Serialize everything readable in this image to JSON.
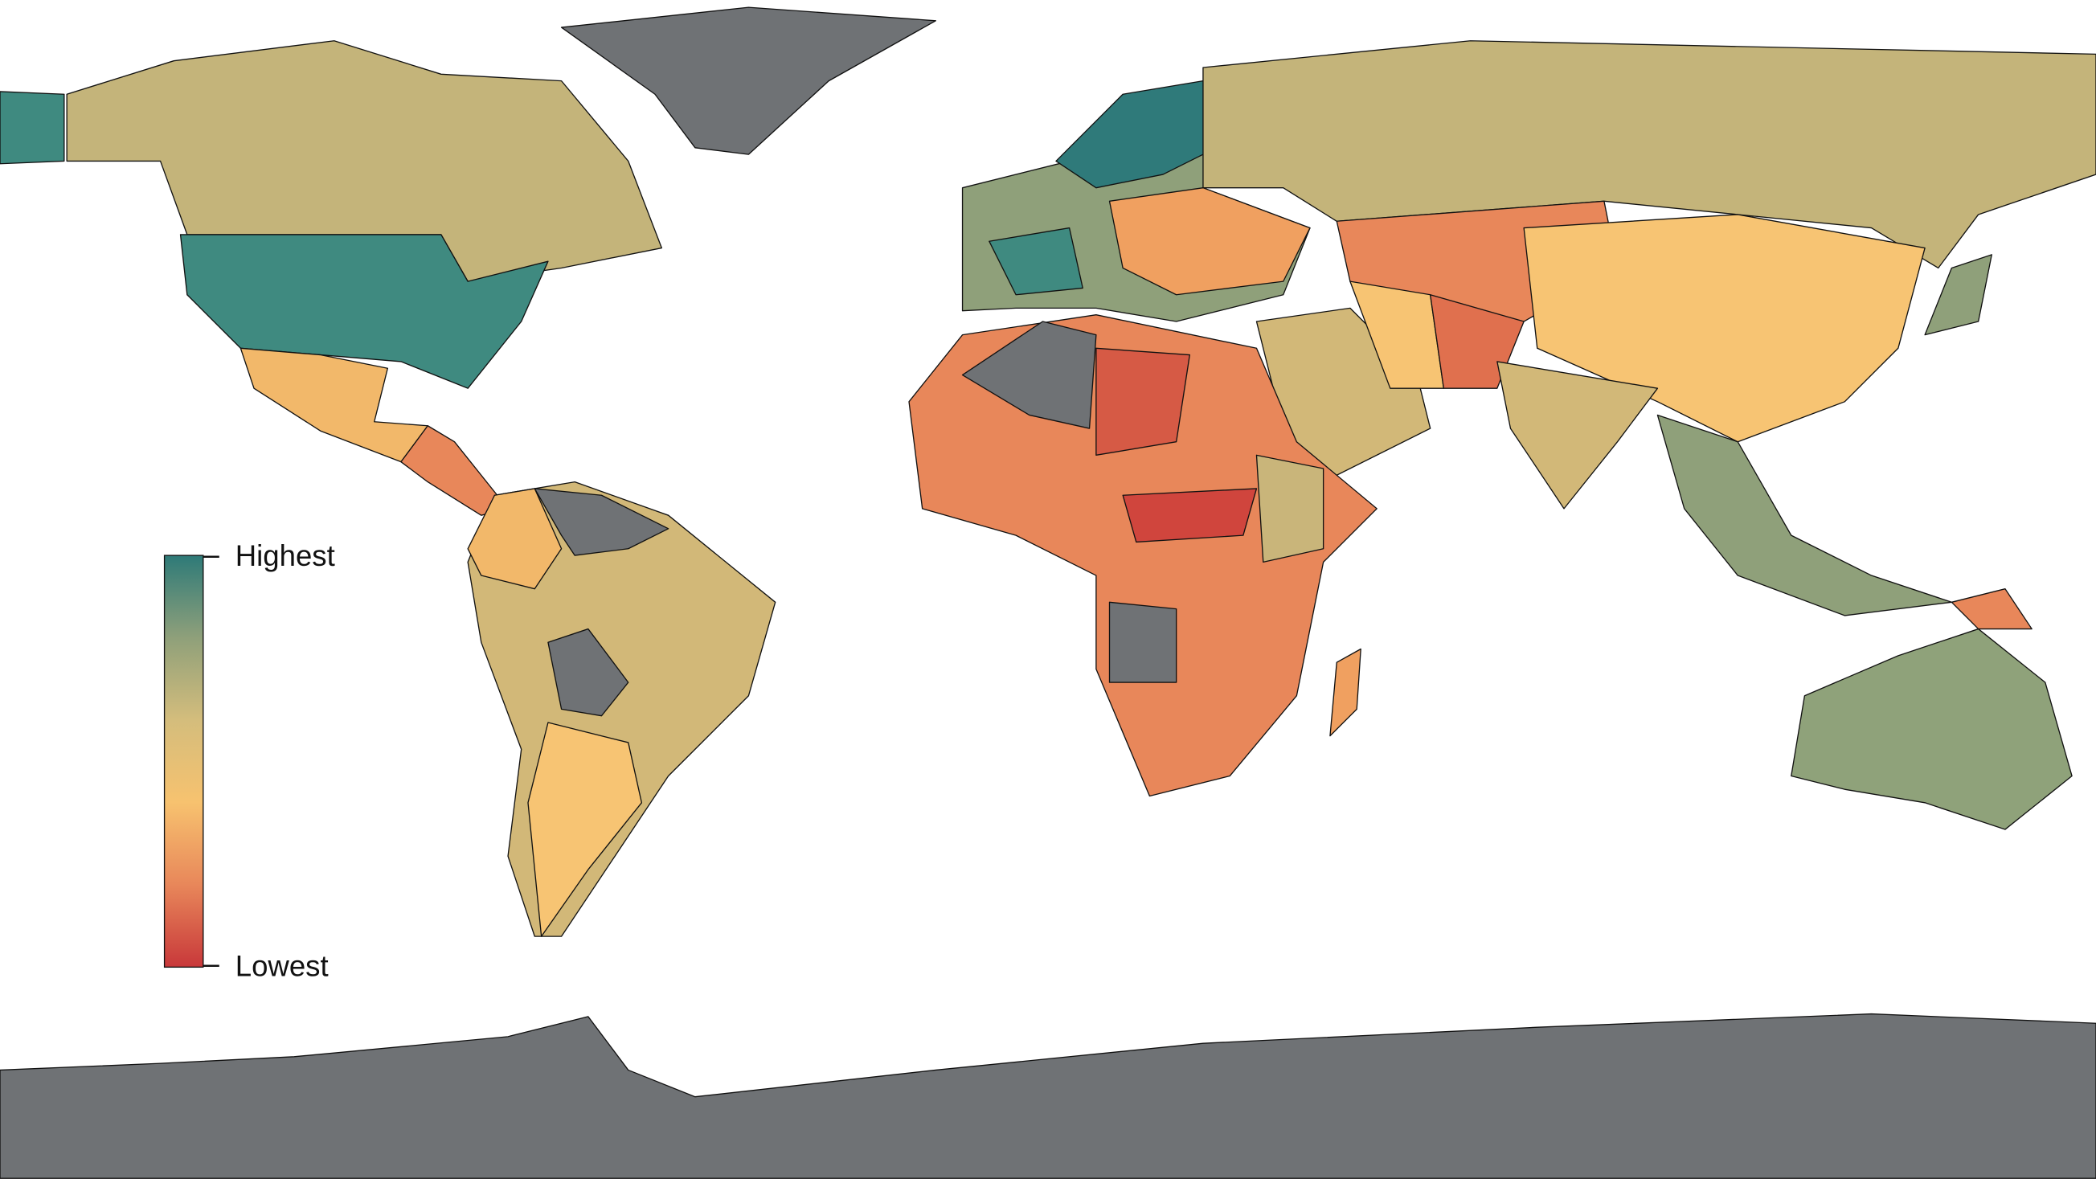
{
  "legend": {
    "high_label": "Highest",
    "low_label": "Lowest",
    "colors": [
      "#2e7a78",
      "#8fa07a",
      "#d4bd7c",
      "#f7c26f",
      "#e8875a",
      "#c8383a"
    ]
  }
}
